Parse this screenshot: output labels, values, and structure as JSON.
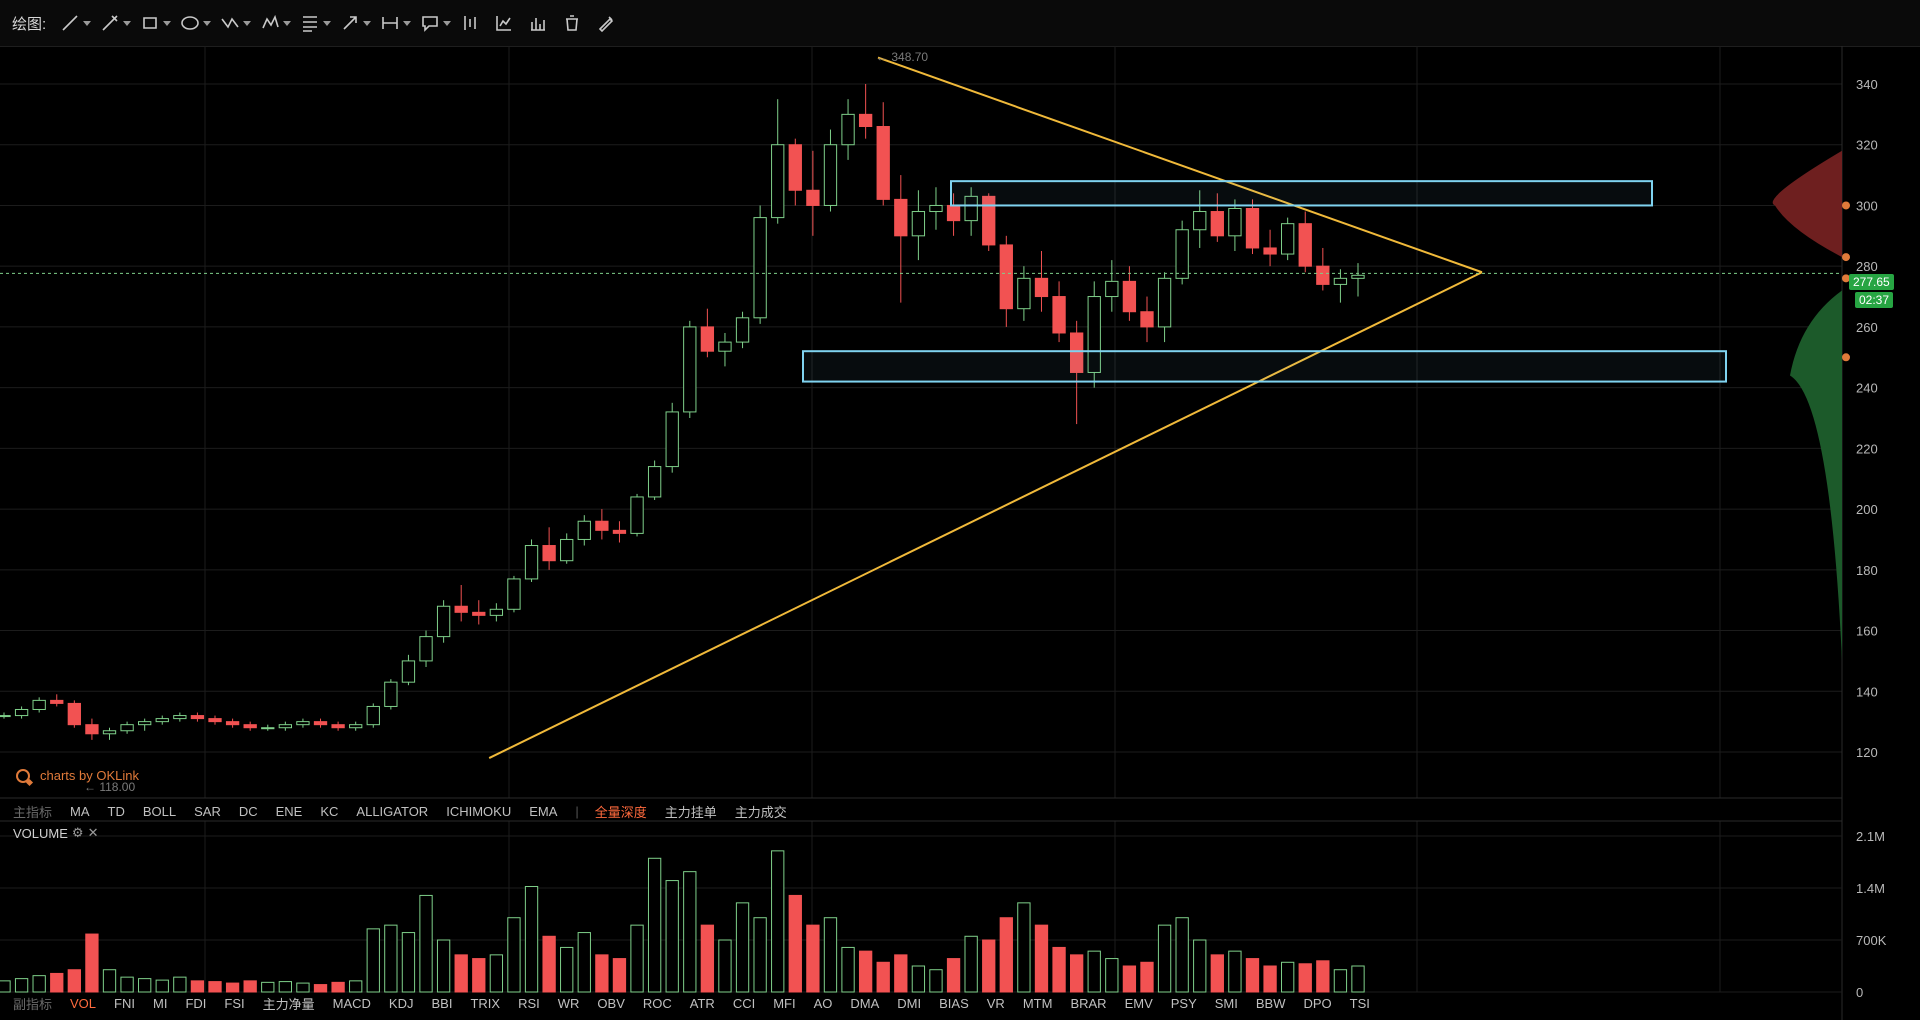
{
  "toolbar": {
    "label": "绘图:",
    "tools": [
      {
        "name": "line-tool",
        "icon": "line-icon",
        "dropdown": true
      },
      {
        "name": "ray-tool",
        "icon": "pencil-line-icon",
        "dropdown": true
      },
      {
        "name": "rect-tool",
        "icon": "rectangle-icon",
        "dropdown": true
      },
      {
        "name": "ellipse-tool",
        "icon": "ellipse-icon",
        "dropdown": true
      },
      {
        "name": "path-tool",
        "icon": "zigzag-icon",
        "dropdown": true
      },
      {
        "name": "pattern-tool",
        "icon": "pattern-icon",
        "dropdown": true
      },
      {
        "name": "fib-tool",
        "icon": "fibonacci-icon",
        "dropdown": true
      },
      {
        "name": "arrow-tool",
        "icon": "arrow-icon",
        "dropdown": true
      },
      {
        "name": "measure-tool",
        "icon": "measure-icon",
        "dropdown": true
      },
      {
        "name": "note-tool",
        "icon": "note-icon",
        "dropdown": true
      },
      {
        "name": "candle-tool",
        "icon": "candle-icon",
        "dropdown": false
      },
      {
        "name": "chart-tool",
        "icon": "chart-icon",
        "dropdown": false
      },
      {
        "name": "bars-tool",
        "icon": "bars-icon",
        "dropdown": false
      },
      {
        "name": "delete-tool",
        "icon": "trash-icon",
        "dropdown": false
      },
      {
        "name": "draw-settings-tool",
        "icon": "pen-settings-icon",
        "dropdown": false
      }
    ]
  },
  "main_indicators": {
    "label": "主指标",
    "items": [
      "MA",
      "TD",
      "BOLL",
      "SAR",
      "DC",
      "ENE",
      "KC",
      "ALLIGATOR",
      "ICHIMOKU",
      "EMA"
    ],
    "extra": [
      "全量深度",
      "主力挂单",
      "主力成交"
    ],
    "active_extra": "全量深度"
  },
  "sub_indicators": {
    "label": "副指标",
    "items": [
      "VOL",
      "FNI",
      "MI",
      "FDI",
      "FSI",
      "主力净量",
      "MACD",
      "KDJ",
      "BBI",
      "TRIX",
      "RSI",
      "WR",
      "OBV",
      "ROC",
      "ATR",
      "CCI",
      "MFI",
      "AO",
      "DMA",
      "DMI",
      "BIAS",
      "VR",
      "MTM",
      "BRAR",
      "EMV",
      "PSY",
      "SMI",
      "BBW",
      "DPO",
      "TSI"
    ],
    "active": "VOL"
  },
  "volume_panel": {
    "title": "VOLUME",
    "settings_icon": "gear-icon",
    "close_icon": "close-icon"
  },
  "watermark": "charts by OKLink",
  "price": {
    "current": "277.65",
    "countdown": "02:37",
    "high_label": "348.70",
    "low_label": "118.00"
  },
  "colors": {
    "up": "#7fd08a",
    "down": "#f25252",
    "trendline": "#f0b93a",
    "zone": "#7fd3f0",
    "tag_green": "#27a543",
    "grid": "#1c1c1c",
    "axis_text": "#b8b8b8",
    "accent": "#ff6a3d"
  },
  "chart_data": [
    {
      "type": "candlestick",
      "ylim": [
        115,
        352
      ],
      "yticks": [
        120,
        140,
        160,
        180,
        200,
        220,
        240,
        260,
        280,
        300,
        320,
        340
      ],
      "grid": true,
      "series": [
        {
          "name": "price",
          "values": [
            [
              132,
              133,
              131,
              132
            ],
            [
              132,
              135,
              131,
              134
            ],
            [
              134,
              138,
              133,
              137
            ],
            [
              137,
              139,
              135,
              136
            ],
            [
              136,
              137,
              128,
              129
            ],
            [
              129,
              131,
              124,
              126
            ],
            [
              126,
              128,
              124,
              127
            ],
            [
              127,
              130,
              126,
              129
            ],
            [
              129,
              131,
              127,
              130
            ],
            [
              130,
              132,
              129,
              131
            ],
            [
              131,
              133,
              130,
              132
            ],
            [
              132,
              133,
              130,
              131
            ],
            [
              131,
              132,
              129,
              130
            ],
            [
              130,
              131,
              128,
              129
            ],
            [
              129,
              130,
              127,
              128
            ],
            [
              128,
              129,
              127,
              128
            ],
            [
              128,
              130,
              127,
              129
            ],
            [
              129,
              131,
              128,
              130
            ],
            [
              130,
              131,
              128,
              129
            ],
            [
              129,
              130,
              127,
              128
            ],
            [
              128,
              130,
              127,
              129
            ],
            [
              129,
              136,
              128,
              135
            ],
            [
              135,
              144,
              134,
              143
            ],
            [
              143,
              152,
              142,
              150
            ],
            [
              150,
              160,
              148,
              158
            ],
            [
              158,
              170,
              156,
              168
            ],
            [
              168,
              175,
              163,
              166
            ],
            [
              166,
              170,
              162,
              165
            ],
            [
              165,
              169,
              163,
              167
            ],
            [
              167,
              178,
              166,
              177
            ],
            [
              177,
              190,
              176,
              188
            ],
            [
              188,
              194,
              180,
              183
            ],
            [
              183,
              192,
              182,
              190
            ],
            [
              190,
              198,
              188,
              196
            ],
            [
              196,
              200,
              190,
              193
            ],
            [
              193,
              196,
              189,
              192
            ],
            [
              192,
              205,
              191,
              204
            ],
            [
              204,
              216,
              203,
              214
            ],
            [
              214,
              235,
              212,
              232
            ],
            [
              232,
              262,
              230,
              260
            ],
            [
              260,
              266,
              250,
              252
            ],
            [
              252,
              258,
              247,
              255
            ],
            [
              255,
              265,
              253,
              263
            ],
            [
              263,
              300,
              261,
              296
            ],
            [
              296,
              335,
              294,
              320
            ],
            [
              320,
              322,
              300,
              305
            ],
            [
              305,
              318,
              290,
              300
            ],
            [
              300,
              325,
              298,
              320
            ],
            [
              320,
              335,
              315,
              330
            ],
            [
              330,
              340,
              322,
              326
            ],
            [
              326,
              334,
              300,
              302
            ],
            [
              302,
              310,
              268,
              290
            ],
            [
              290,
              305,
              282,
              298
            ],
            [
              298,
              306,
              292,
              300
            ],
            [
              300,
              304,
              290,
              295
            ],
            [
              295,
              306,
              290,
              303
            ],
            [
              303,
              304,
              285,
              287
            ],
            [
              287,
              290,
              260,
              266
            ],
            [
              266,
              280,
              262,
              276
            ],
            [
              276,
              285,
              265,
              270
            ],
            [
              270,
              275,
              255,
              258
            ],
            [
              258,
              262,
              228,
              245
            ],
            [
              245,
              275,
              240,
              270
            ],
            [
              270,
              282,
              265,
              275
            ],
            [
              275,
              280,
              262,
              265
            ],
            [
              265,
              270,
              255,
              260
            ],
            [
              260,
              278,
              255,
              276
            ],
            [
              276,
              295,
              274,
              292
            ],
            [
              292,
              305,
              286,
              298
            ],
            [
              298,
              304,
              288,
              290
            ],
            [
              290,
              302,
              285,
              299
            ],
            [
              299,
              302,
              284,
              286
            ],
            [
              286,
              292,
              280,
              284
            ],
            [
              284,
              296,
              282,
              294
            ],
            [
              294,
              298,
              278,
              280
            ],
            [
              280,
              286,
              272,
              274
            ],
            [
              274,
              279,
              268,
              276
            ],
            [
              276,
              281,
              270,
              277
            ]
          ]
        }
      ]
    },
    {
      "type": "bar",
      "ylim": [
        0,
        2.1
      ],
      "yticks": [
        "0",
        "700K",
        "1.4M",
        "2.1M"
      ],
      "series": [
        {
          "name": "VOLUME",
          "values": [
            0.15,
            0.18,
            0.22,
            0.25,
            0.3,
            0.78,
            0.3,
            0.2,
            0.18,
            0.16,
            0.2,
            0.15,
            0.14,
            0.12,
            0.15,
            0.13,
            0.14,
            0.12,
            0.1,
            0.13,
            0.15,
            0.85,
            0.9,
            0.8,
            1.3,
            0.7,
            0.5,
            0.45,
            0.5,
            1.0,
            1.42,
            0.75,
            0.6,
            0.8,
            0.5,
            0.45,
            0.9,
            1.8,
            1.5,
            1.62,
            0.9,
            0.7,
            1.2,
            1.0,
            1.9,
            1.3,
            0.9,
            1.0,
            0.6,
            0.55,
            0.4,
            0.5,
            0.35,
            0.3,
            0.45,
            0.75,
            0.7,
            1.0,
            1.2,
            0.9,
            0.6,
            0.5,
            0.55,
            0.45,
            0.35,
            0.4,
            0.9,
            1.0,
            0.7,
            0.5,
            0.55,
            0.45,
            0.35,
            0.4,
            0.38,
            0.42,
            0.3,
            0.35
          ]
        }
      ]
    }
  ]
}
